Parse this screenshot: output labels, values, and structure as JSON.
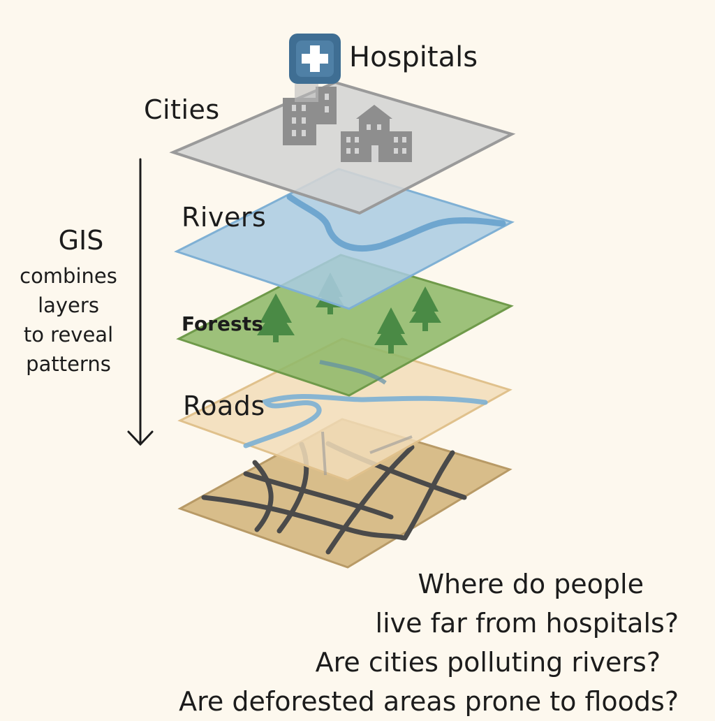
{
  "layers": {
    "hospitals": "Hospitals",
    "cities": "Cities",
    "rivers": "Rivers",
    "forests": "Forests",
    "roads": "Roads"
  },
  "gis_note": {
    "title": "GIS",
    "lines": [
      "combines",
      "layers",
      "to reveal",
      "patterns"
    ]
  },
  "questions": [
    "Where do people",
    "live far from hospitals?",
    "Are cities polluting rivers?",
    "Are deforested areas prone to floods?"
  ],
  "colors": {
    "background": "#fdf8ee",
    "hospital_badge": "#3f6e93",
    "cities_layer": "#d4d4d4",
    "rivers_layer": "#a9cbe2",
    "forests_layer": "#8fb86a",
    "roads_layer": "#f2ddb8",
    "base_layer": "#d8bd8a",
    "road_lines": "#4a4a4a",
    "water": "#6fa6cf",
    "trees": "#4a8a45",
    "buildings": "#8e8e8e"
  },
  "icons": [
    "hospital-cross-icon",
    "building-icon",
    "tree-icon",
    "arrow-down-icon"
  ]
}
